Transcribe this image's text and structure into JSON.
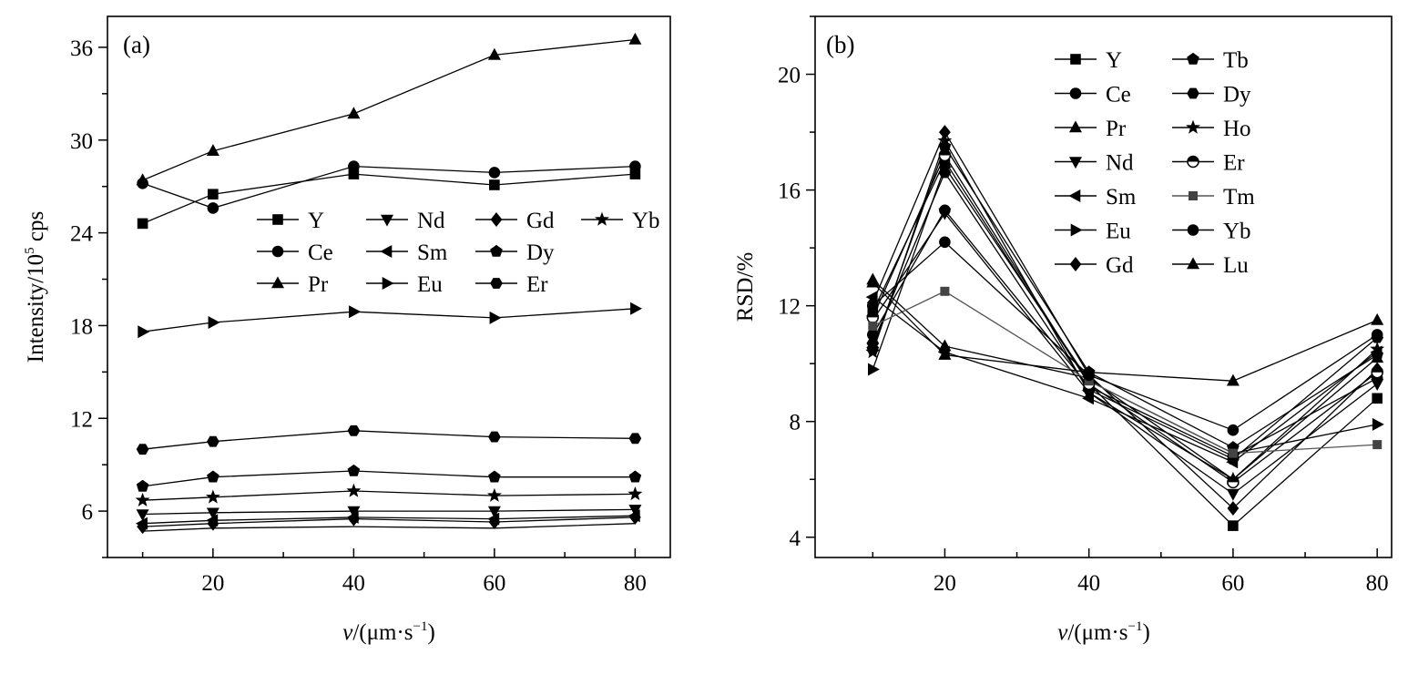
{
  "chart_data": [
    {
      "type": "line",
      "panel_label": "(a)",
      "xlabel_italic": "v",
      "xlabel_rest": "/(μm·s",
      "xlabel_sup": "−1",
      "xlabel_close": ")",
      "ylabel_main": "Intensity/10",
      "ylabel_sup": "5",
      "ylabel_unit": " cps",
      "x": [
        10,
        20,
        40,
        60,
        80
      ],
      "xlim": [
        5,
        85
      ],
      "ylim": [
        3,
        38
      ],
      "xticks": [
        "20",
        "40",
        "60",
        "80"
      ],
      "yticks": [
        "6",
        "12",
        "18",
        "24",
        "30",
        "36"
      ],
      "legend_position": "center-right",
      "legend_columns": 4,
      "series": [
        {
          "name": "Y",
          "marker": "square",
          "values": [
            24.6,
            26.5,
            27.8,
            27.1,
            27.8
          ]
        },
        {
          "name": "Ce",
          "marker": "circle",
          "values": [
            27.2,
            25.6,
            28.3,
            27.9,
            28.3
          ]
        },
        {
          "name": "Pr",
          "marker": "triangle-up",
          "values": [
            27.4,
            29.3,
            31.7,
            35.5,
            36.5
          ]
        },
        {
          "name": "Nd",
          "marker": "triangle-down",
          "values": [
            5.8,
            5.9,
            6.0,
            6.0,
            6.1
          ]
        },
        {
          "name": "Sm",
          "marker": "triangle-left",
          "values": [
            5.2,
            5.4,
            5.6,
            5.5,
            5.7
          ]
        },
        {
          "name": "Eu",
          "marker": "triangle-right",
          "values": [
            17.6,
            18.2,
            18.9,
            18.5,
            19.1
          ]
        },
        {
          "name": "Gd",
          "marker": "diamond",
          "values": [
            5.0,
            5.2,
            5.5,
            5.3,
            5.6
          ]
        },
        {
          "name": "Dy",
          "marker": "pentagon",
          "values": [
            7.6,
            8.2,
            8.6,
            8.2,
            8.2
          ]
        },
        {
          "name": "Er",
          "marker": "hexagon",
          "values": [
            10.0,
            10.5,
            11.2,
            10.8,
            10.7
          ]
        },
        {
          "name": "Yb",
          "marker": "star",
          "values": [
            6.7,
            6.9,
            7.3,
            7.0,
            7.1
          ]
        },
        {
          "name": "",
          "marker": "none",
          "values": [
            4.7,
            4.9,
            5.0,
            4.9,
            5.2
          ]
        }
      ]
    },
    {
      "type": "line",
      "panel_label": "(b)",
      "xlabel_italic": "v",
      "xlabel_rest": "/(μm·s",
      "xlabel_sup": "−1",
      "xlabel_close": ")",
      "ylabel": "RSD/%",
      "x": [
        10,
        20,
        40,
        60,
        80
      ],
      "xlim": [
        2,
        82
      ],
      "ylim": [
        3.3,
        22
      ],
      "xticks": [
        "20",
        "40",
        "60",
        "80"
      ],
      "yticks": [
        "4",
        "8",
        "12",
        "16",
        "20"
      ],
      "legend_position": "top-right",
      "legend_columns": 2,
      "series": [
        {
          "name": "Y",
          "marker": "square",
          "values": [
            11.8,
            17.0,
            9.3,
            4.4,
            8.8
          ]
        },
        {
          "name": "Ce",
          "marker": "circle",
          "values": [
            11.0,
            15.3,
            9.2,
            6.8,
            9.5
          ]
        },
        {
          "name": "Pr",
          "marker": "triangle-up",
          "values": [
            12.9,
            10.6,
            9.5,
            6.0,
            10.2
          ]
        },
        {
          "name": "Nd",
          "marker": "triangle-down",
          "values": [
            11.5,
            15.2,
            9.0,
            5.5,
            9.3
          ]
        },
        {
          "name": "Sm",
          "marker": "triangle-left",
          "values": [
            12.3,
            10.4,
            8.8,
            6.6,
            10.4
          ]
        },
        {
          "name": "Eu",
          "marker": "triangle-right",
          "values": [
            9.8,
            16.8,
            9.4,
            6.9,
            7.9
          ]
        },
        {
          "name": "Gd",
          "marker": "diamond",
          "values": [
            12.1,
            18.0,
            9.6,
            5.0,
            9.8
          ]
        },
        {
          "name": "Tb",
          "marker": "pentagon",
          "values": [
            10.5,
            17.5,
            9.7,
            7.1,
            10.3
          ]
        },
        {
          "name": "Dy",
          "marker": "hexagon",
          "values": [
            10.7,
            16.6,
            9.1,
            6.7,
            10.9
          ]
        },
        {
          "name": "Ho",
          "marker": "star",
          "values": [
            10.4,
            17.7,
            9.0,
            6.0,
            10.5
          ]
        },
        {
          "name": "Er",
          "marker": "half-circle",
          "values": [
            11.6,
            17.2,
            9.3,
            5.9,
            9.7
          ]
        },
        {
          "name": "Tm",
          "marker": "small-square",
          "values": [
            11.3,
            12.5,
            9.4,
            6.9,
            7.2
          ]
        },
        {
          "name": "Yb",
          "marker": "circle",
          "values": [
            12.0,
            14.2,
            9.6,
            7.7,
            11.0
          ]
        },
        {
          "name": "Lu",
          "marker": "triangle-up",
          "values": [
            12.8,
            10.3,
            9.7,
            9.4,
            11.5
          ]
        }
      ]
    }
  ]
}
